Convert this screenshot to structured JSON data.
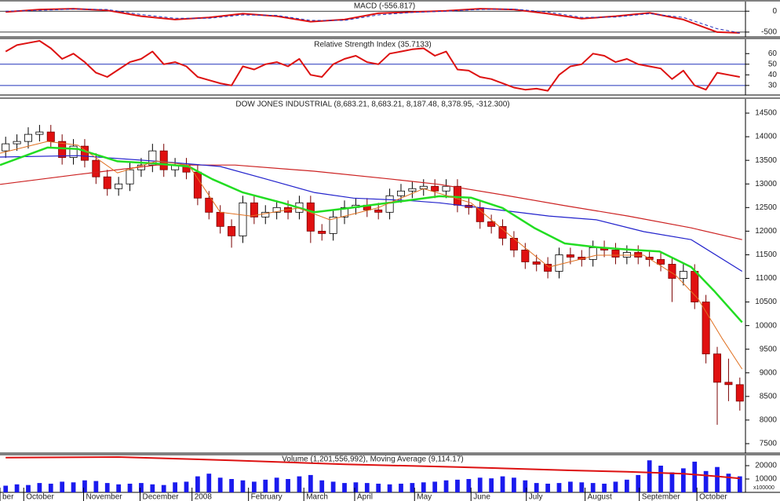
{
  "chart_data": [
    {
      "type": "line",
      "title": "MACD (-556.817)",
      "xlim": [
        -0.5,
        65.5
      ],
      "ylim": [
        -615,
        230
      ],
      "yticks": [
        0,
        -500
      ],
      "grid": true,
      "series": [
        {
          "color": "#dd1111",
          "width": 2,
          "x": [
            0,
            3,
            6,
            9,
            12,
            15,
            18,
            21,
            24,
            27,
            30,
            33,
            36,
            39,
            42,
            45,
            48,
            51,
            54,
            57,
            60,
            63,
            65
          ],
          "values": [
            -20,
            40,
            60,
            20,
            -120,
            -200,
            -150,
            -60,
            -120,
            -250,
            -200,
            -50,
            -20,
            10,
            60,
            40,
            -60,
            -180,
            -120,
            -40,
            -200,
            -500,
            -520
          ]
        },
        {
          "color": "#2233bb",
          "width": 1,
          "dashed": true,
          "x": [
            0,
            3,
            6,
            9,
            12,
            15,
            18,
            21,
            24,
            27,
            30,
            33,
            36,
            39,
            42,
            45,
            48,
            51,
            54,
            57,
            60,
            63,
            65
          ],
          "values": [
            0,
            20,
            50,
            40,
            -80,
            -170,
            -170,
            -90,
            -100,
            -220,
            -220,
            -90,
            -30,
            0,
            40,
            50,
            -20,
            -150,
            -140,
            -60,
            -150,
            -420,
            -520
          ]
        }
      ]
    },
    {
      "type": "line",
      "title": "Relative Strength Index (35.7133)",
      "xlim": [
        -0.5,
        65.5
      ],
      "ylim": [
        21,
        73.5
      ],
      "yticks": [
        60,
        50,
        40,
        30
      ],
      "levels": [
        50,
        30
      ],
      "level_color": "#2233bb",
      "series": [
        {
          "color": "#dd1111",
          "width": 2,
          "x": [
            0,
            1,
            2,
            3,
            4,
            5,
            6,
            7,
            8,
            9,
            10,
            11,
            12,
            13,
            14,
            15,
            16,
            17,
            18,
            19,
            20,
            21,
            22,
            23,
            24,
            25,
            26,
            27,
            28,
            29,
            30,
            31,
            32,
            33,
            34,
            35,
            36,
            37,
            38,
            39,
            40,
            41,
            42,
            43,
            44,
            45,
            46,
            47,
            48,
            49,
            50,
            51,
            52,
            53,
            54,
            55,
            56,
            57,
            58,
            59,
            60,
            61,
            62,
            63,
            64,
            65
          ],
          "values": [
            62,
            68,
            70,
            72,
            65,
            55,
            60,
            52,
            42,
            38,
            45,
            52,
            55,
            62,
            50,
            52,
            48,
            38,
            35,
            32,
            30,
            48,
            45,
            50,
            52,
            48,
            55,
            40,
            38,
            50,
            55,
            58,
            52,
            50,
            60,
            62,
            64,
            65,
            58,
            62,
            45,
            44,
            38,
            36,
            32,
            28,
            26,
            27,
            25,
            40,
            48,
            50,
            60,
            58,
            52,
            55,
            50,
            48,
            46,
            36,
            44,
            30,
            26,
            42,
            40,
            38
          ]
        }
      ]
    },
    {
      "type": "candlestick",
      "title": "DOW JONES INDUSTRIAL (8,683.21, 8,683.21, 8,187.48, 8,378.95, -312.300)",
      "xlim": [
        -0.5,
        65.5
      ],
      "ylim": [
        7300,
        14800
      ],
      "yticks": [
        14500,
        14000,
        13500,
        13000,
        12500,
        12000,
        11500,
        11000,
        10500,
        10000,
        9500,
        9000,
        8500,
        8000,
        7500
      ],
      "up_color": "#ffffff",
      "down_color": "#e01010",
      "x": [
        0,
        1,
        2,
        3,
        4,
        5,
        6,
        7,
        8,
        9,
        10,
        11,
        12,
        13,
        14,
        15,
        16,
        17,
        18,
        19,
        20,
        21,
        22,
        23,
        24,
        25,
        26,
        27,
        28,
        29,
        30,
        31,
        32,
        33,
        34,
        35,
        36,
        37,
        38,
        39,
        40,
        41,
        42,
        43,
        44,
        45,
        46,
        47,
        48,
        49,
        50,
        51,
        52,
        53,
        54,
        55,
        56,
        57,
        58,
        59,
        60,
        61,
        62,
        63,
        64,
        65
      ],
      "open": [
        13700,
        13850,
        13900,
        14050,
        14100,
        13900,
        13560,
        13800,
        13500,
        13150,
        12900,
        13000,
        13300,
        13400,
        13700,
        13300,
        13400,
        13250,
        12700,
        12400,
        12100,
        11900,
        12600,
        12300,
        12400,
        12500,
        12400,
        12600,
        12000,
        11950,
        12300,
        12500,
        12550,
        12450,
        12400,
        12750,
        12850,
        12900,
        12950,
        12850,
        12950,
        12550,
        12500,
        12200,
        12100,
        11850,
        11600,
        11350,
        11300,
        11150,
        11500,
        11450,
        11400,
        11650,
        11600,
        11450,
        11550,
        11450,
        11400,
        11300,
        11000,
        11150,
        10500,
        9400,
        8800,
        8750
      ],
      "high": [
        14000,
        14050,
        14200,
        14250,
        14250,
        14050,
        13950,
        13950,
        13650,
        13300,
        13150,
        13450,
        13550,
        13850,
        13850,
        13550,
        13550,
        13400,
        12850,
        12550,
        12250,
        12750,
        12750,
        12550,
        12650,
        12650,
        12750,
        12750,
        12150,
        12450,
        12650,
        12700,
        12700,
        12600,
        12900,
        13000,
        13050,
        13100,
        13100,
        13100,
        13100,
        12700,
        12650,
        12350,
        12250,
        12000,
        11750,
        11500,
        11450,
        11650,
        11650,
        11600,
        11800,
        11800,
        11750,
        11700,
        11700,
        11600,
        11550,
        11450,
        11300,
        11300,
        10650,
        9550,
        9300,
        8900
      ],
      "low": [
        13550,
        13700,
        13750,
        13900,
        13750,
        13410,
        13410,
        13350,
        13000,
        12750,
        12750,
        12850,
        13150,
        13250,
        13150,
        13150,
        13100,
        12550,
        12250,
        11950,
        11650,
        11750,
        12150,
        12150,
        12250,
        12250,
        12250,
        11750,
        11800,
        11800,
        12150,
        12350,
        12300,
        12250,
        12250,
        12600,
        12700,
        12750,
        12700,
        12700,
        12400,
        12350,
        12050,
        11950,
        11700,
        11450,
        11200,
        11150,
        11000,
        11000,
        11300,
        11250,
        11250,
        11450,
        11300,
        11300,
        11300,
        11250,
        11150,
        10500,
        10850,
        10350,
        9200,
        7900,
        8400,
        8200
      ],
      "close": [
        13850,
        13900,
        14050,
        14100,
        13900,
        13560,
        13800,
        13500,
        13150,
        12900,
        13000,
        13300,
        13400,
        13700,
        13300,
        13400,
        13250,
        12700,
        12400,
        12100,
        11900,
        12600,
        12300,
        12400,
        12500,
        12400,
        12600,
        12000,
        11950,
        12300,
        12500,
        12550,
        12450,
        12400,
        12750,
        12850,
        12900,
        12950,
        12850,
        12950,
        12550,
        12500,
        12200,
        12100,
        11850,
        11600,
        11350,
        11300,
        11150,
        11500,
        11450,
        11400,
        11650,
        11600,
        11450,
        11550,
        11450,
        11400,
        11300,
        11000,
        11150,
        10500,
        9400,
        8800,
        8750,
        8400
      ],
      "series": [
        {
          "color": "#cc2222",
          "width": 1.2,
          "x": [
            -0.5,
            6.4,
            13.4,
            20.3,
            27.3,
            34.2,
            38.4,
            44,
            49.5,
            55.1,
            60.7,
            65.2
          ],
          "values": [
            12990,
            13200,
            13400,
            13400,
            13270,
            13100,
            12990,
            12770,
            12540,
            12320,
            12070,
            11820
          ]
        },
        {
          "color": "#2222cc",
          "width": 1.2,
          "x": [
            -0.5,
            6.4,
            13.4,
            19,
            23.1,
            27.3,
            30.8,
            35.6,
            38.4,
            44,
            48.1,
            52.3,
            56.5,
            60.7,
            65.2
          ],
          "values": [
            13570,
            13600,
            13480,
            13370,
            13100,
            12820,
            12700,
            12650,
            12600,
            12440,
            12320,
            12240,
            11990,
            11820,
            11150
          ]
        },
        {
          "color": "#22dd22",
          "width": 2.5,
          "x": [
            -0.5,
            3.7,
            6.4,
            9.9,
            13.4,
            16.2,
            18.3,
            21,
            24.5,
            27.3,
            30.1,
            32.9,
            35.6,
            38.4,
            41.2,
            44,
            46.8,
            49.5,
            52.3,
            55.1,
            57.9,
            60.7,
            62.7,
            65.2
          ],
          "values": [
            13400,
            13770,
            13740,
            13480,
            13430,
            13370,
            13100,
            12820,
            12600,
            12400,
            12480,
            12570,
            12650,
            12740,
            12710,
            12490,
            12070,
            11740,
            11660,
            11610,
            11570,
            11240,
            10740,
            10070
          ]
        },
        {
          "color": "#e07020",
          "width": 1,
          "x": [
            -0.5,
            3.7,
            6.4,
            9.9,
            13.4,
            16.2,
            19,
            21.7,
            25.9,
            28.7,
            32.9,
            37,
            41.2,
            44.7,
            48.1,
            52.3,
            56.5,
            59.3,
            61.3,
            63.4,
            65.2
          ],
          "values": [
            13650,
            13900,
            13820,
            13235,
            13485,
            13400,
            12400,
            12320,
            12490,
            12240,
            12490,
            12900,
            12600,
            11900,
            11240,
            11490,
            11490,
            11070,
            10570,
            9740,
            9080
          ]
        }
      ]
    },
    {
      "type": "bar",
      "title": "Volume (1,201,556,992), Moving Average (9,114.17)",
      "unit_label": "x100000",
      "xlim": [
        -0.5,
        65.5
      ],
      "ylim": [
        0,
        27650
      ],
      "yticks": [
        20000,
        10000
      ],
      "color": "#1a1aee",
      "x": [
        0,
        1,
        2,
        3,
        4,
        5,
        6,
        7,
        8,
        9,
        10,
        11,
        12,
        13,
        14,
        15,
        16,
        17,
        18,
        19,
        20,
        21,
        22,
        23,
        24,
        25,
        26,
        27,
        28,
        29,
        30,
        31,
        32,
        33,
        34,
        35,
        36,
        37,
        38,
        39,
        40,
        41,
        42,
        43,
        44,
        45,
        46,
        47,
        48,
        49,
        50,
        51,
        52,
        53,
        54,
        55,
        56,
        57,
        58,
        59,
        60,
        61,
        62,
        63,
        64,
        65
      ],
      "values": [
        5000,
        6000,
        5500,
        7000,
        6500,
        8000,
        7500,
        9000,
        8500,
        7000,
        6000,
        6500,
        7000,
        6000,
        5500,
        7500,
        8000,
        12000,
        14000,
        11000,
        10000,
        9000,
        8000,
        9500,
        11000,
        10000,
        12000,
        13000,
        9000,
        8000,
        7000,
        7500,
        7000,
        6500,
        6000,
        6500,
        7000,
        7500,
        8000,
        9000,
        9500,
        10000,
        11000,
        10500,
        12000,
        11000,
        9000,
        7000,
        6500,
        7000,
        8000,
        7500,
        7000,
        6500,
        8000,
        9500,
        13000,
        24000,
        20000,
        15000,
        18000,
        23000,
        16000,
        19000,
        14000,
        12000
      ],
      "series": [
        {
          "color": "#dd1111",
          "width": 2,
          "x": [
            0,
            10,
            20,
            30,
            40,
            50,
            55,
            60,
            63,
            65
          ],
          "values": [
            26000,
            26500,
            24000,
            21000,
            19000,
            16500,
            15500,
            14000,
            12000,
            10500
          ]
        }
      ],
      "xticks": [
        {
          "value": -0.5,
          "label": "ber"
        },
        {
          "value": 1.6,
          "label": "October"
        },
        {
          "value": 6.9,
          "label": "November"
        },
        {
          "value": 11.9,
          "label": "December"
        },
        {
          "value": 16.5,
          "label": "2008"
        },
        {
          "value": 21.5,
          "label": "February"
        },
        {
          "value": 26.4,
          "label": "March"
        },
        {
          "value": 30.9,
          "label": "April"
        },
        {
          "value": 36.2,
          "label": "May"
        },
        {
          "value": 41.2,
          "label": "June"
        },
        {
          "value": 46.1,
          "label": "July"
        },
        {
          "value": 51.3,
          "label": "August"
        },
        {
          "value": 56.1,
          "label": "September"
        },
        {
          "value": 61.2,
          "label": "October"
        }
      ]
    }
  ]
}
